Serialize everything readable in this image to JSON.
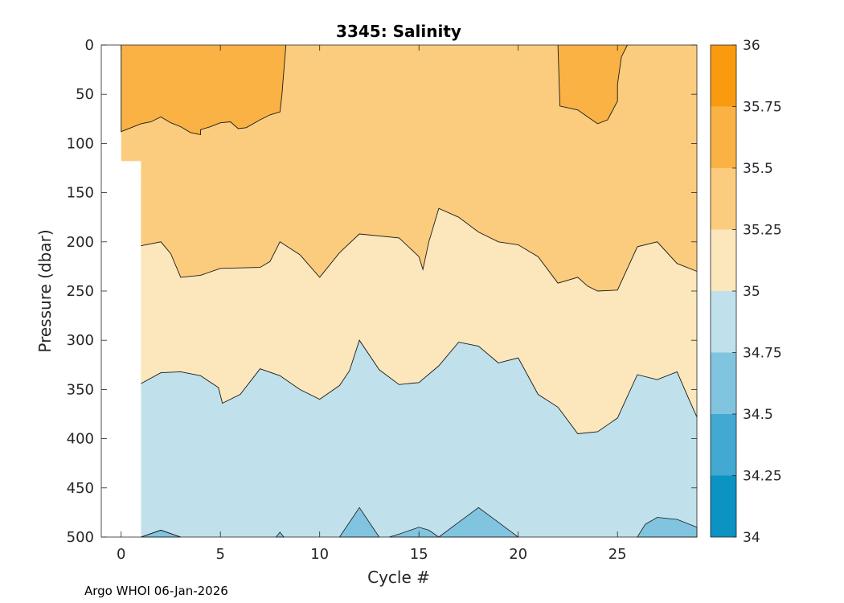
{
  "chart_data": {
    "type": "contour",
    "title": "3345:  Salinity",
    "xlabel": "Cycle #",
    "ylabel": "Pressure (dbar)",
    "xlim": [
      -1,
      29
    ],
    "ylim": [
      0,
      500
    ],
    "y_reversed": true,
    "xticks": [
      0,
      5,
      10,
      15,
      20,
      25
    ],
    "yticks": [
      0,
      50,
      100,
      150,
      200,
      250,
      300,
      350,
      400,
      450,
      500
    ],
    "colorbar": {
      "range": [
        34,
        36
      ],
      "ticks": [
        "34",
        "34.25",
        "34.5",
        "34.75",
        "35",
        "35.25",
        "35.5",
        "35.75",
        "36"
      ],
      "levels": [
        {
          "from": 34.0,
          "to": 34.25,
          "color": "#0a93c3"
        },
        {
          "from": 34.25,
          "to": 34.5,
          "color": "#41a9d2"
        },
        {
          "from": 34.5,
          "to": 34.75,
          "color": "#81c4df"
        },
        {
          "from": 34.75,
          "to": 35.0,
          "color": "#c0e1ec"
        },
        {
          "from": 35.0,
          "to": 35.25,
          "color": "#fce6bc"
        },
        {
          "from": 35.25,
          "to": 35.5,
          "color": "#fbcc7e"
        },
        {
          "from": 35.5,
          "to": 35.75,
          "color": "#fab245"
        },
        {
          "from": 35.75,
          "to": 36.0,
          "color": "#f99a0f"
        }
      ]
    },
    "contours": [
      {
        "level": 35.5,
        "name": "contour-35-5-left",
        "points": [
          [
            0,
            0
          ],
          [
            0,
            88
          ],
          [
            1,
            80
          ],
          [
            1.5,
            78
          ],
          [
            2,
            73
          ],
          [
            2.5,
            79
          ],
          [
            3,
            83
          ],
          [
            3.5,
            89
          ],
          [
            4,
            91
          ],
          [
            4,
            86
          ],
          [
            4.5,
            83
          ],
          [
            5,
            79
          ],
          [
            5.5,
            78
          ],
          [
            5.9,
            85
          ],
          [
            6.3,
            84
          ],
          [
            7,
            76
          ],
          [
            7.5,
            71
          ],
          [
            8,
            68
          ],
          [
            8.1,
            50
          ],
          [
            8.3,
            0
          ]
        ]
      },
      {
        "level": 35.5,
        "name": "contour-35-5-right",
        "points": [
          [
            22,
            0
          ],
          [
            22.1,
            62
          ],
          [
            23,
            66
          ],
          [
            23.5,
            73
          ],
          [
            24,
            80
          ],
          [
            24.5,
            76
          ],
          [
            25,
            57
          ],
          [
            25,
            40
          ],
          [
            25.2,
            12
          ],
          [
            25.5,
            0
          ]
        ]
      },
      {
        "level": 35.25,
        "name": "contour-35-25",
        "points": [
          [
            1,
            204
          ],
          [
            2,
            200
          ],
          [
            2.5,
            212
          ],
          [
            3,
            236
          ],
          [
            4,
            234
          ],
          [
            5,
            227
          ],
          [
            7,
            226
          ],
          [
            7.5,
            220
          ],
          [
            8,
            200
          ],
          [
            9,
            213
          ],
          [
            10,
            236
          ],
          [
            11,
            211
          ],
          [
            12,
            192
          ],
          [
            14,
            196
          ],
          [
            15,
            215
          ],
          [
            15.2,
            228
          ],
          [
            15.5,
            200
          ],
          [
            16,
            166
          ],
          [
            17,
            175
          ],
          [
            18,
            190
          ],
          [
            19,
            200
          ],
          [
            20,
            203
          ],
          [
            21,
            215
          ],
          [
            22,
            242
          ],
          [
            23,
            236
          ],
          [
            23.5,
            245
          ],
          [
            24,
            250
          ],
          [
            25,
            249
          ],
          [
            26,
            205
          ],
          [
            27,
            200
          ],
          [
            28,
            222
          ],
          [
            29,
            230
          ]
        ]
      },
      {
        "level": 35.0,
        "name": "contour-35-0",
        "points": [
          [
            1,
            344
          ],
          [
            2,
            333
          ],
          [
            3,
            332
          ],
          [
            4,
            336
          ],
          [
            4.9,
            348
          ],
          [
            5.1,
            364
          ],
          [
            6,
            355
          ],
          [
            7,
            329
          ],
          [
            8,
            336
          ],
          [
            9,
            350
          ],
          [
            10,
            360
          ],
          [
            11,
            346
          ],
          [
            11.5,
            331
          ],
          [
            12,
            300
          ],
          [
            13,
            330
          ],
          [
            14,
            345
          ],
          [
            15,
            343
          ],
          [
            16,
            326
          ],
          [
            17,
            302
          ],
          [
            18,
            306
          ],
          [
            19,
            323
          ],
          [
            20,
            318
          ],
          [
            21,
            355
          ],
          [
            22,
            368
          ],
          [
            23,
            395
          ],
          [
            24,
            393
          ],
          [
            25,
            379
          ],
          [
            26,
            335
          ],
          [
            27,
            340
          ],
          [
            28,
            332
          ],
          [
            28.6,
            360
          ],
          [
            29,
            378
          ]
        ]
      },
      {
        "level": 34.75,
        "name": "contour-34-75",
        "points": [
          [
            1,
            500
          ],
          [
            2,
            493
          ],
          [
            3,
            500
          ]
        ]
      }
    ]
  }
}
